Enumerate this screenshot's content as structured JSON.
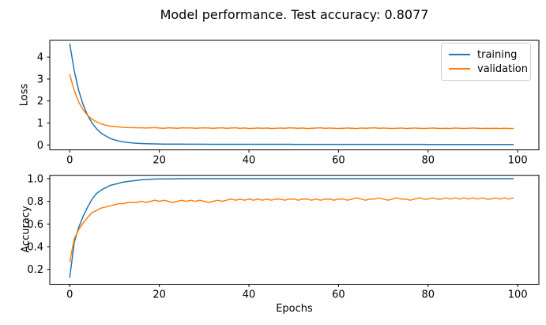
{
  "figure": {
    "title": "Model performance. Test accuracy: 0.8077",
    "background": "#ffffff",
    "test_accuracy": "0.8077"
  },
  "colors": {
    "training": "#1f77b4",
    "validation": "#ff7f0e",
    "axis": "#000000",
    "legend_border": "#cccccc"
  },
  "legend": {
    "position": "upper right",
    "entries": [
      {
        "label": "training",
        "color": "#1f77b4"
      },
      {
        "label": "validation",
        "color": "#ff7f0e"
      }
    ]
  },
  "labels": {
    "xlabel": "Epochs",
    "ylabel_top": "Loss",
    "ylabel_bottom": "Accuracy"
  },
  "chart_data": [
    {
      "type": "line",
      "title": "",
      "ylabel": "Loss",
      "xlabel": "",
      "grid": false,
      "legend_position": "upper right",
      "xlim": [
        -4.5,
        104.7
      ],
      "ylim": [
        -0.21,
        4.83
      ],
      "xtick_values": [
        0,
        20,
        40,
        60,
        80,
        100
      ],
      "xtick_labels": [
        "0",
        "20",
        "40",
        "60",
        "80",
        "100"
      ],
      "ytick_values": [
        0,
        1,
        2,
        3,
        4
      ],
      "ytick_labels": [
        "0",
        "1",
        "2",
        "3",
        "4"
      ],
      "x_is_epoch_index": true,
      "x_range": [
        0,
        99
      ],
      "series": [
        {
          "name": "training",
          "color": "#1f77b4",
          "values": [
            4.6,
            3.37,
            2.48,
            1.82,
            1.34,
            0.99,
            0.73,
            0.54,
            0.41,
            0.3,
            0.23,
            0.18,
            0.14,
            0.11,
            0.09,
            0.075,
            0.065,
            0.058,
            0.052,
            0.048,
            0.044,
            0.041,
            0.039,
            0.037,
            0.036,
            0.035,
            0.034,
            0.033,
            0.032,
            0.031,
            0.031,
            0.03,
            0.03,
            0.029,
            0.029,
            0.029,
            0.028,
            0.028,
            0.028,
            0.028,
            0.027,
            0.027,
            0.027,
            0.027,
            0.027,
            0.027,
            0.027,
            0.027,
            0.027,
            0.027,
            0.026,
            0.026,
            0.026,
            0.026,
            0.026,
            0.026,
            0.026,
            0.026,
            0.026,
            0.026,
            0.025,
            0.025,
            0.025,
            0.025,
            0.025,
            0.025,
            0.025,
            0.025,
            0.025,
            0.025,
            0.024,
            0.024,
            0.024,
            0.024,
            0.024,
            0.024,
            0.024,
            0.024,
            0.024,
            0.024,
            0.022,
            0.022,
            0.022,
            0.022,
            0.022,
            0.022,
            0.022,
            0.022,
            0.022,
            0.022,
            0.021,
            0.021,
            0.021,
            0.021,
            0.021,
            0.02,
            0.02,
            0.02,
            0.02,
            0.02
          ]
        },
        {
          "name": "validation",
          "color": "#ff7f0e",
          "values": [
            3.2,
            2.47,
            1.95,
            1.6,
            1.34,
            1.17,
            1.05,
            0.96,
            0.9,
            0.86,
            0.84,
            0.82,
            0.8,
            0.79,
            0.79,
            0.78,
            0.78,
            0.77,
            0.78,
            0.79,
            0.77,
            0.76,
            0.78,
            0.77,
            0.76,
            0.78,
            0.77,
            0.78,
            0.76,
            0.77,
            0.78,
            0.77,
            0.76,
            0.77,
            0.78,
            0.76,
            0.77,
            0.78,
            0.76,
            0.77,
            0.75,
            0.76,
            0.77,
            0.76,
            0.77,
            0.75,
            0.76,
            0.77,
            0.76,
            0.78,
            0.77,
            0.76,
            0.77,
            0.75,
            0.76,
            0.77,
            0.78,
            0.76,
            0.77,
            0.76,
            0.75,
            0.76,
            0.77,
            0.76,
            0.75,
            0.77,
            0.76,
            0.77,
            0.78,
            0.76,
            0.77,
            0.76,
            0.75,
            0.76,
            0.77,
            0.75,
            0.76,
            0.77,
            0.76,
            0.75,
            0.76,
            0.77,
            0.76,
            0.75,
            0.76,
            0.75,
            0.77,
            0.76,
            0.75,
            0.76,
            0.77,
            0.76,
            0.75,
            0.76,
            0.75,
            0.76,
            0.75,
            0.76,
            0.75,
            0.75
          ]
        }
      ]
    },
    {
      "type": "line",
      "title": "",
      "ylabel": "Accuracy",
      "xlabel": "Epochs",
      "grid": false,
      "xlim": [
        -4.5,
        104.7
      ],
      "ylim": [
        0.07,
        1.03
      ],
      "xtick_values": [
        0,
        20,
        40,
        60,
        80,
        100
      ],
      "xtick_labels": [
        "0",
        "20",
        "40",
        "60",
        "80",
        "100"
      ],
      "ytick_values": [
        0.2,
        0.4,
        0.6,
        0.8,
        1.0
      ],
      "ytick_labels": [
        "0.2",
        "0.4",
        "0.6",
        "0.8",
        "1.0"
      ],
      "x_is_epoch_index": true,
      "x_range": [
        0,
        99
      ],
      "series": [
        {
          "name": "training",
          "color": "#1f77b4",
          "values": [
            0.13,
            0.44,
            0.57,
            0.67,
            0.75,
            0.82,
            0.87,
            0.9,
            0.92,
            0.94,
            0.95,
            0.96,
            0.97,
            0.975,
            0.98,
            0.985,
            0.99,
            0.992,
            0.994,
            0.996,
            0.997,
            0.997,
            0.998,
            0.998,
            0.999,
            0.999,
            0.999,
            0.999,
            1.0,
            1.0,
            1.0,
            1.0,
            1.0,
            1.0,
            1.0,
            1.0,
            1.0,
            1.0,
            1.0,
            1.0,
            1.0,
            1.0,
            1.0,
            1.0,
            1.0,
            1.0,
            1.0,
            1.0,
            1.0,
            1.0,
            1.0,
            1.0,
            1.0,
            1.0,
            1.0,
            1.0,
            1.0,
            1.0,
            1.0,
            1.0,
            1.0,
            1.0,
            1.0,
            1.0,
            1.0,
            1.0,
            1.0,
            1.0,
            1.0,
            1.0,
            1.0,
            1.0,
            1.0,
            1.0,
            1.0,
            1.0,
            1.0,
            1.0,
            1.0,
            1.0,
            1.0,
            1.0,
            1.0,
            1.0,
            1.0,
            1.0,
            1.0,
            1.0,
            1.0,
            1.0,
            1.0,
            1.0,
            1.0,
            1.0,
            1.0,
            1.0,
            1.0,
            1.0,
            1.0,
            1.0
          ]
        },
        {
          "name": "validation",
          "color": "#ff7f0e",
          "values": [
            0.27,
            0.47,
            0.55,
            0.61,
            0.66,
            0.7,
            0.72,
            0.74,
            0.75,
            0.76,
            0.77,
            0.78,
            0.78,
            0.79,
            0.79,
            0.79,
            0.8,
            0.79,
            0.8,
            0.81,
            0.8,
            0.81,
            0.8,
            0.79,
            0.8,
            0.81,
            0.8,
            0.81,
            0.8,
            0.81,
            0.8,
            0.79,
            0.8,
            0.81,
            0.8,
            0.81,
            0.82,
            0.81,
            0.82,
            0.81,
            0.82,
            0.81,
            0.82,
            0.81,
            0.82,
            0.81,
            0.82,
            0.82,
            0.81,
            0.82,
            0.82,
            0.81,
            0.82,
            0.82,
            0.81,
            0.82,
            0.81,
            0.82,
            0.82,
            0.81,
            0.82,
            0.82,
            0.81,
            0.82,
            0.83,
            0.82,
            0.81,
            0.82,
            0.82,
            0.83,
            0.82,
            0.81,
            0.82,
            0.83,
            0.82,
            0.82,
            0.81,
            0.82,
            0.83,
            0.82,
            0.82,
            0.83,
            0.82,
            0.82,
            0.83,
            0.82,
            0.83,
            0.82,
            0.83,
            0.82,
            0.83,
            0.82,
            0.83,
            0.82,
            0.82,
            0.83,
            0.82,
            0.83,
            0.82,
            0.83
          ]
        }
      ]
    }
  ]
}
